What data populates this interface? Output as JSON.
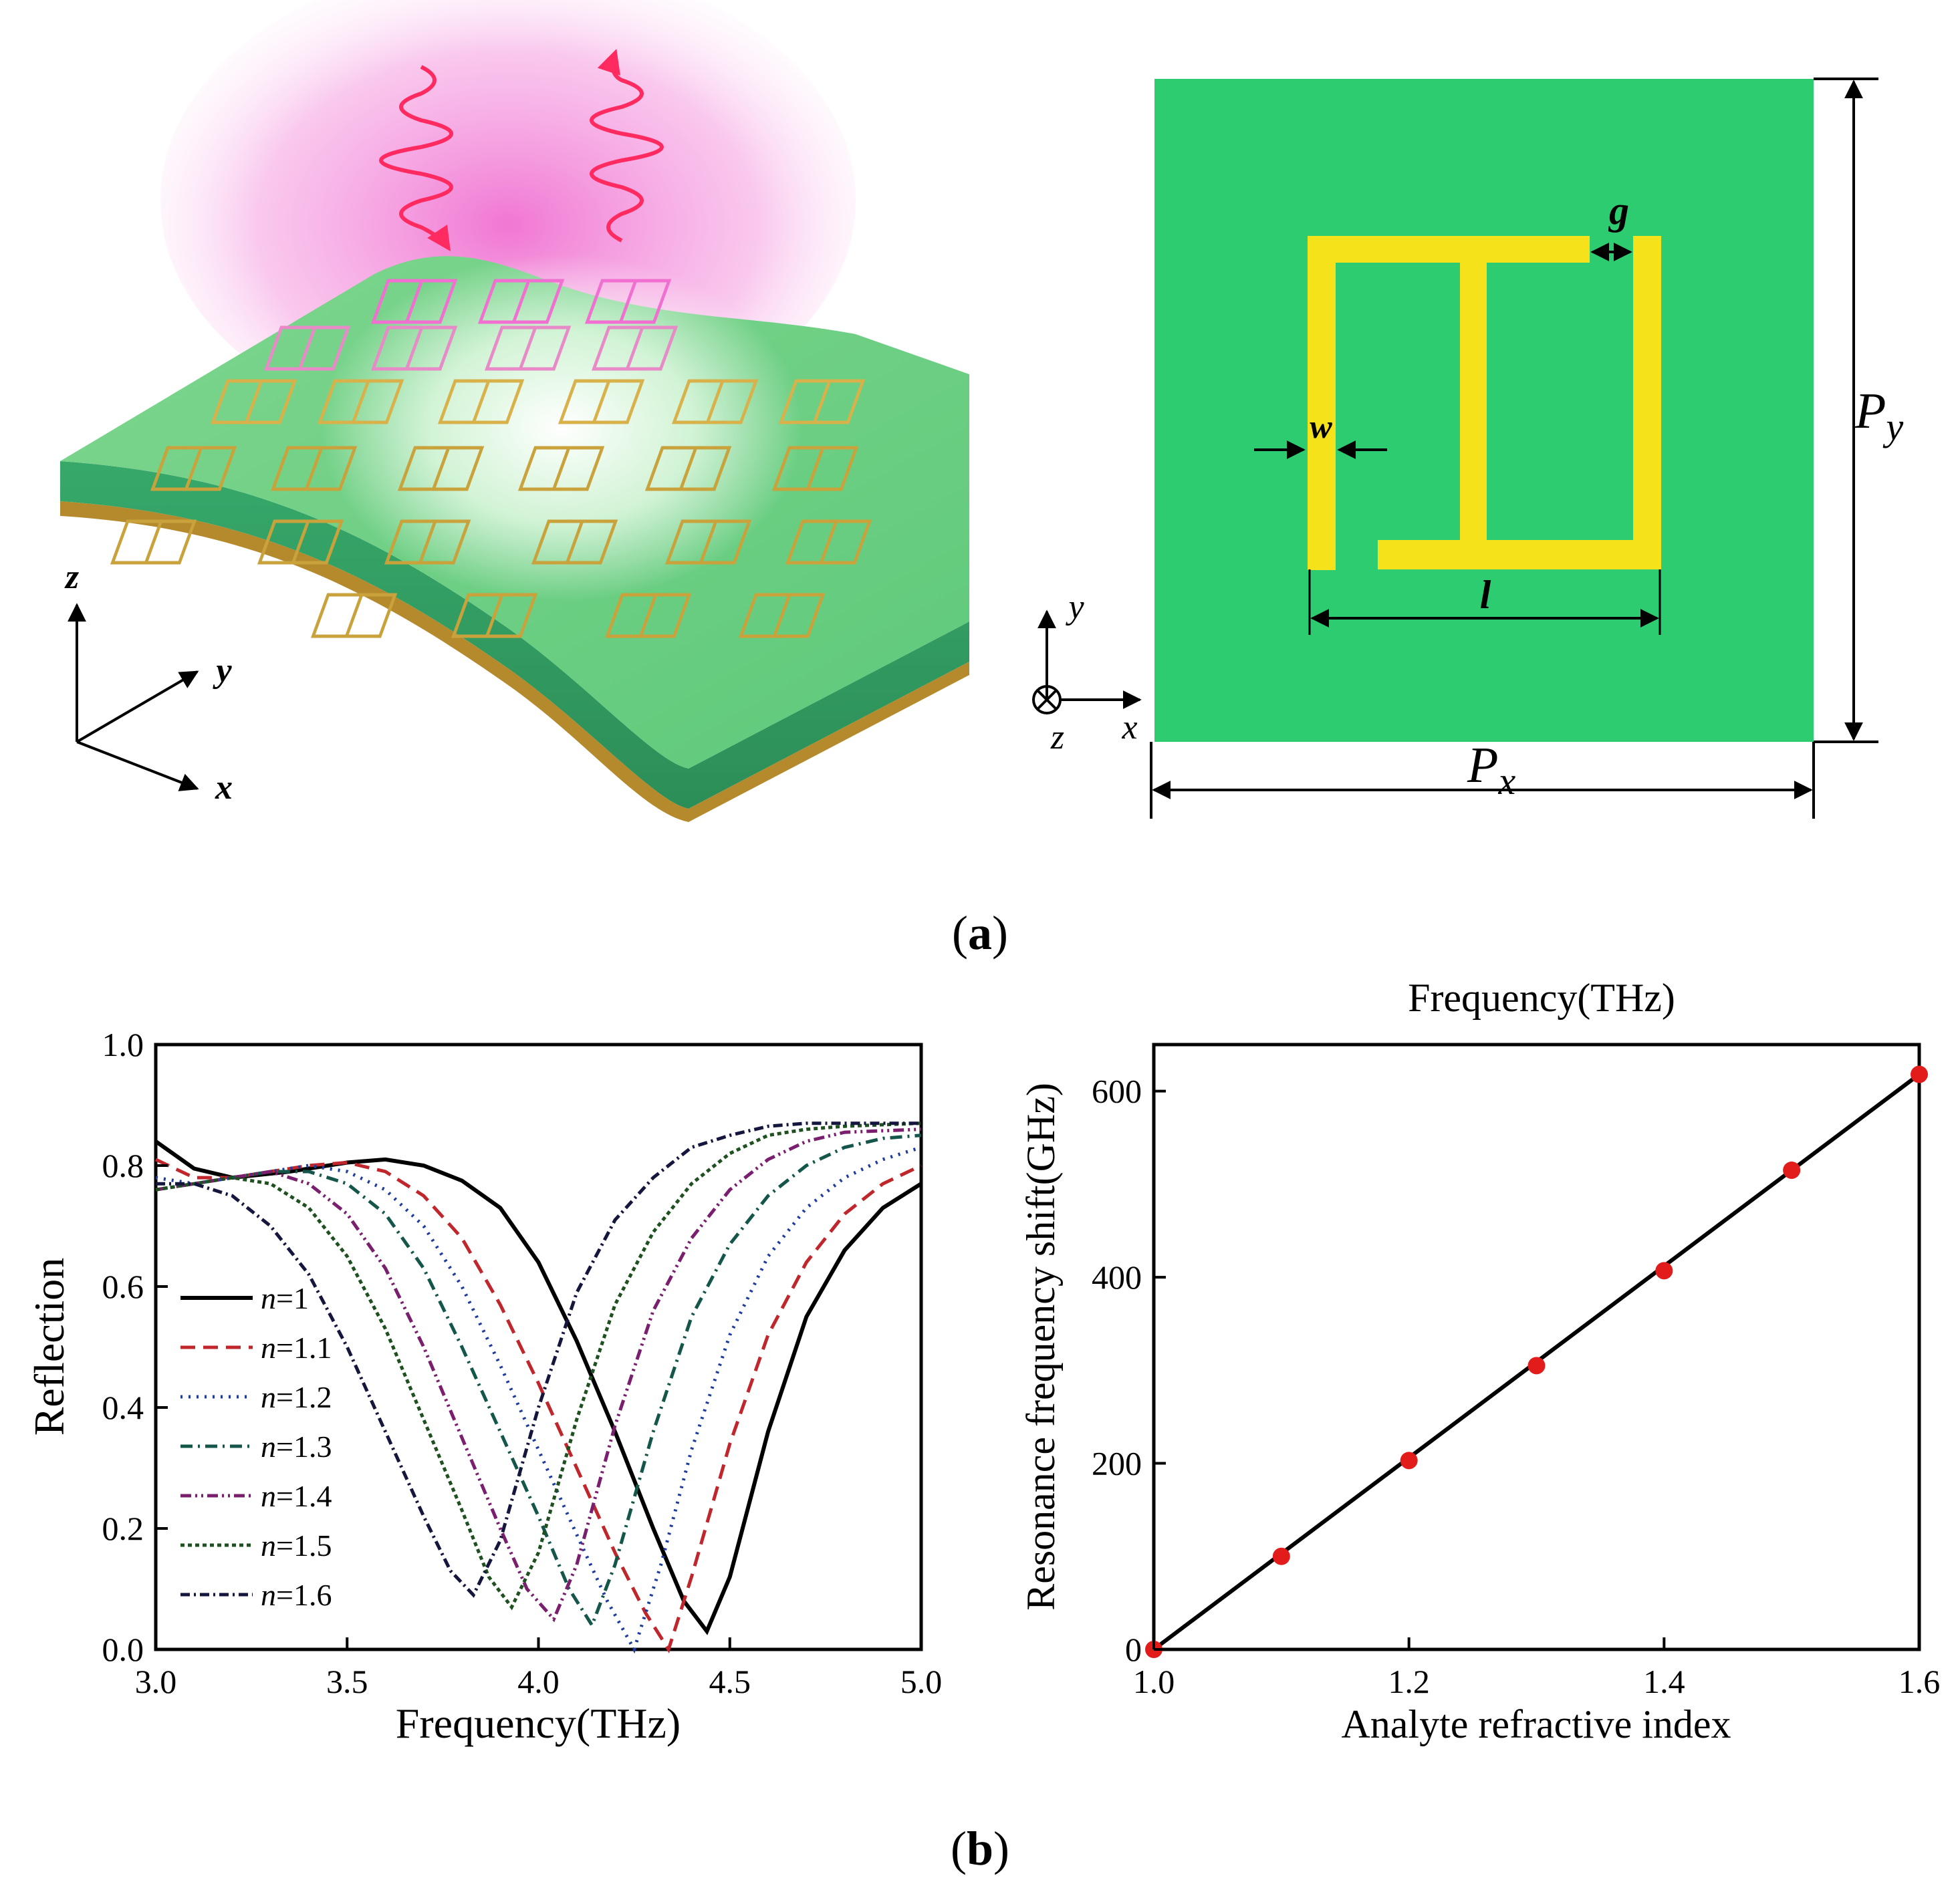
{
  "panel_a": {
    "label_open": "(",
    "label_letter": "a",
    "label_close": ")",
    "axes3d": {
      "z": "z",
      "y": "y",
      "x": "x"
    },
    "unit_cell": {
      "g": "g",
      "w": "w",
      "l": "l",
      "px_main": "P",
      "px_sub": "x",
      "py_main": "P",
      "py_sub": "y",
      "axis_y": "y",
      "axis_x": "x",
      "axis_z": "z"
    },
    "colors": {
      "substrate": "#2ecc71",
      "metal": "#f5e21b",
      "wave": "#ff2a5f",
      "glow": "#f06fd0"
    }
  },
  "panel_b": {
    "label_open": "(",
    "label_letter": "b",
    "label_close": ")"
  },
  "chart_data": [
    {
      "type": "line",
      "title": "",
      "xlabel": "Frequency(THz)",
      "ylabel": "Reflection",
      "xlim": [
        3.0,
        5.0
      ],
      "ylim": [
        0.0,
        1.0
      ],
      "xticks": [
        "3.0",
        "3.5",
        "4.0",
        "4.5",
        "5.0"
      ],
      "yticks": [
        "0.0",
        "0.2",
        "0.4",
        "0.6",
        "0.8",
        "1.0"
      ],
      "series": [
        {
          "name": "n=1",
          "n": "1",
          "min_freq": 4.44,
          "min_val": 0.03,
          "start": 0.84,
          "end": 0.77,
          "color": "#000000",
          "dash": "",
          "points": [
            [
              3.0,
              0.84
            ],
            [
              3.1,
              0.795
            ],
            [
              3.2,
              0.78
            ],
            [
              3.35,
              0.79
            ],
            [
              3.5,
              0.805
            ],
            [
              3.6,
              0.81
            ],
            [
              3.7,
              0.8
            ],
            [
              3.8,
              0.775
            ],
            [
              3.9,
              0.73
            ],
            [
              4.0,
              0.64
            ],
            [
              4.1,
              0.51
            ],
            [
              4.2,
              0.36
            ],
            [
              4.3,
              0.2
            ],
            [
              4.38,
              0.08
            ],
            [
              4.44,
              0.03
            ],
            [
              4.5,
              0.12
            ],
            [
              4.6,
              0.36
            ],
            [
              4.7,
              0.55
            ],
            [
              4.8,
              0.66
            ],
            [
              4.9,
              0.73
            ],
            [
              5.0,
              0.77
            ]
          ]
        },
        {
          "name": "n=1.1",
          "n": "1.1",
          "min_freq": 4.34,
          "min_val": 0.0,
          "start": 0.81,
          "end": 0.8,
          "color": "#c0272d",
          "dash": "22,12",
          "points": [
            [
              3.0,
              0.81
            ],
            [
              3.1,
              0.78
            ],
            [
              3.2,
              0.78
            ],
            [
              3.3,
              0.79
            ],
            [
              3.4,
              0.8
            ],
            [
              3.5,
              0.805
            ],
            [
              3.6,
              0.79
            ],
            [
              3.7,
              0.75
            ],
            [
              3.8,
              0.68
            ],
            [
              3.9,
              0.57
            ],
            [
              4.0,
              0.44
            ],
            [
              4.1,
              0.3
            ],
            [
              4.2,
              0.16
            ],
            [
              4.28,
              0.06
            ],
            [
              4.34,
              0.0
            ],
            [
              4.4,
              0.12
            ],
            [
              4.5,
              0.34
            ],
            [
              4.6,
              0.52
            ],
            [
              4.7,
              0.64
            ],
            [
              4.8,
              0.72
            ],
            [
              4.9,
              0.77
            ],
            [
              5.0,
              0.8
            ]
          ]
        },
        {
          "name": "n=1.2",
          "n": "1.2",
          "min_freq": 4.25,
          "min_val": 0.0,
          "start": 0.78,
          "end": 0.83,
          "color": "#1d3c9e",
          "dash": "3,9",
          "points": [
            [
              3.0,
              0.78
            ],
            [
              3.1,
              0.77
            ],
            [
              3.2,
              0.78
            ],
            [
              3.3,
              0.79
            ],
            [
              3.4,
              0.8
            ],
            [
              3.5,
              0.79
            ],
            [
              3.6,
              0.76
            ],
            [
              3.7,
              0.7
            ],
            [
              3.8,
              0.6
            ],
            [
              3.9,
              0.47
            ],
            [
              4.0,
              0.33
            ],
            [
              4.1,
              0.19
            ],
            [
              4.18,
              0.08
            ],
            [
              4.25,
              0.0
            ],
            [
              4.32,
              0.14
            ],
            [
              4.4,
              0.33
            ],
            [
              4.5,
              0.52
            ],
            [
              4.6,
              0.65
            ],
            [
              4.7,
              0.73
            ],
            [
              4.8,
              0.78
            ],
            [
              4.9,
              0.81
            ],
            [
              5.0,
              0.83
            ]
          ]
        },
        {
          "name": "n=1.3",
          "n": "1.3",
          "min_freq": 4.14,
          "min_val": 0.04,
          "start": 0.76,
          "end": 0.85,
          "color": "#14564a",
          "dash": "18,8,3,8",
          "points": [
            [
              3.0,
              0.76
            ],
            [
              3.1,
              0.77
            ],
            [
              3.2,
              0.78
            ],
            [
              3.3,
              0.79
            ],
            [
              3.4,
              0.79
            ],
            [
              3.5,
              0.77
            ],
            [
              3.6,
              0.72
            ],
            [
              3.7,
              0.63
            ],
            [
              3.8,
              0.5
            ],
            [
              3.9,
              0.36
            ],
            [
              4.0,
              0.22
            ],
            [
              4.08,
              0.1
            ],
            [
              4.14,
              0.04
            ],
            [
              4.2,
              0.14
            ],
            [
              4.3,
              0.36
            ],
            [
              4.4,
              0.55
            ],
            [
              4.5,
              0.67
            ],
            [
              4.6,
              0.75
            ],
            [
              4.7,
              0.8
            ],
            [
              4.8,
              0.83
            ],
            [
              4.9,
              0.845
            ],
            [
              5.0,
              0.85
            ]
          ]
        },
        {
          "name": "n=1.4",
          "n": "1.4",
          "min_freq": 4.04,
          "min_val": 0.05,
          "start": 0.76,
          "end": 0.86,
          "color": "#7a1f6e",
          "dash": "16,6,3,6,3,6",
          "points": [
            [
              3.0,
              0.76
            ],
            [
              3.1,
              0.77
            ],
            [
              3.2,
              0.78
            ],
            [
              3.3,
              0.79
            ],
            [
              3.4,
              0.77
            ],
            [
              3.5,
              0.72
            ],
            [
              3.6,
              0.63
            ],
            [
              3.7,
              0.5
            ],
            [
              3.8,
              0.35
            ],
            [
              3.9,
              0.2
            ],
            [
              3.97,
              0.1
            ],
            [
              4.04,
              0.05
            ],
            [
              4.1,
              0.14
            ],
            [
              4.2,
              0.37
            ],
            [
              4.3,
              0.56
            ],
            [
              4.4,
              0.68
            ],
            [
              4.5,
              0.76
            ],
            [
              4.6,
              0.81
            ],
            [
              4.7,
              0.84
            ],
            [
              4.8,
              0.855
            ],
            [
              5.0,
              0.86
            ]
          ]
        },
        {
          "name": "n=1.5",
          "n": "1.5",
          "min_freq": 3.93,
          "min_val": 0.07,
          "start": 0.76,
          "end": 0.87,
          "color": "#1f5020",
          "dash": "6,5",
          "points": [
            [
              3.0,
              0.76
            ],
            [
              3.1,
              0.77
            ],
            [
              3.2,
              0.78
            ],
            [
              3.3,
              0.77
            ],
            [
              3.4,
              0.73
            ],
            [
              3.5,
              0.65
            ],
            [
              3.6,
              0.53
            ],
            [
              3.7,
              0.38
            ],
            [
              3.8,
              0.23
            ],
            [
              3.87,
              0.12
            ],
            [
              3.93,
              0.07
            ],
            [
              4.0,
              0.16
            ],
            [
              4.1,
              0.38
            ],
            [
              4.2,
              0.57
            ],
            [
              4.3,
              0.69
            ],
            [
              4.4,
              0.77
            ],
            [
              4.5,
              0.82
            ],
            [
              4.6,
              0.85
            ],
            [
              4.7,
              0.86
            ],
            [
              4.8,
              0.865
            ],
            [
              5.0,
              0.87
            ]
          ]
        },
        {
          "name": "n=1.6",
          "n": "1.6",
          "min_freq": 3.83,
          "min_val": 0.09,
          "start": 0.77,
          "end": 0.87,
          "color": "#15163d",
          "dash": "14,6,3,6",
          "points": [
            [
              3.0,
              0.77
            ],
            [
              3.1,
              0.77
            ],
            [
              3.2,
              0.75
            ],
            [
              3.3,
              0.7
            ],
            [
              3.4,
              0.62
            ],
            [
              3.5,
              0.5
            ],
            [
              3.6,
              0.36
            ],
            [
              3.7,
              0.22
            ],
            [
              3.77,
              0.13
            ],
            [
              3.83,
              0.09
            ],
            [
              3.9,
              0.18
            ],
            [
              4.0,
              0.4
            ],
            [
              4.1,
              0.59
            ],
            [
              4.2,
              0.71
            ],
            [
              4.3,
              0.78
            ],
            [
              4.4,
              0.83
            ],
            [
              4.5,
              0.85
            ],
            [
              4.6,
              0.865
            ],
            [
              4.7,
              0.87
            ],
            [
              5.0,
              0.87
            ]
          ]
        }
      ]
    },
    {
      "type": "scatter",
      "title": "Frequency(THz)",
      "xlabel": "Analyte refractive index",
      "ylabel": "Resonance frequency shift(GHz)",
      "xlim": [
        1.0,
        1.6
      ],
      "ylim": [
        0,
        650
      ],
      "xticks": [
        "1.0",
        "1.2",
        "1.4",
        "1.6"
      ],
      "yticks": [
        "0",
        "200",
        "400",
        "600"
      ],
      "x": [
        1.0,
        1.1,
        1.2,
        1.3,
        1.4,
        1.5,
        1.6
      ],
      "values": [
        0,
        100,
        203,
        305,
        407,
        515,
        618
      ],
      "fit_line": [
        [
          1.0,
          0
        ],
        [
          1.6,
          618
        ]
      ],
      "marker_color": "#e21b1b",
      "line_color": "#000000"
    }
  ]
}
